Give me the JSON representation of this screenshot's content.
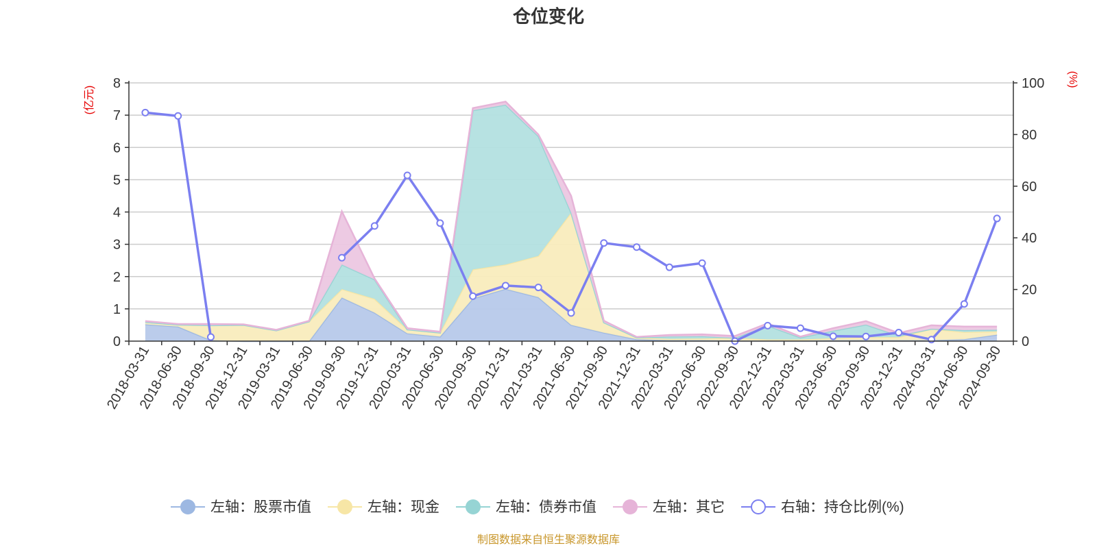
{
  "chart_data": {
    "type": "area",
    "title": "仓位变化",
    "ylabel_left": "(亿元)",
    "ylabel_right": "(%)",
    "ylim_left": [
      0,
      8
    ],
    "yticks_left": [
      "0",
      "1",
      "2",
      "3",
      "4",
      "5",
      "6",
      "7",
      "8"
    ],
    "ylim_right": [
      0,
      100
    ],
    "yticks_right": [
      "0",
      "20",
      "40",
      "60",
      "80",
      "100"
    ],
    "grid": true,
    "legend_position": "bottom",
    "categories": [
      "2018-03-31",
      "2018-06-30",
      "2018-09-30",
      "2018-12-31",
      "2019-03-31",
      "2019-06-30",
      "2019-09-30",
      "2019-12-31",
      "2020-03-31",
      "2020-06-30",
      "2020-09-30",
      "2020-12-31",
      "2021-03-31",
      "2021-06-30",
      "2021-09-30",
      "2021-12-31",
      "2022-03-31",
      "2022-06-30",
      "2022-09-30",
      "2022-12-31",
      "2023-03-31",
      "2023-06-30",
      "2023-09-30",
      "2023-12-31",
      "2024-03-31",
      "2024-06-30",
      "2024-09-30"
    ],
    "series": [
      {
        "name": "左轴：股票市值",
        "axis": "left",
        "color": "#9db8e2",
        "fill": "#b7c9ea",
        "values": [
          0.52,
          0.45,
          0.03,
          0,
          0,
          0,
          1.35,
          0.88,
          0.24,
          0.14,
          1.32,
          1.62,
          1.36,
          0.5,
          0.26,
          0.06,
          0.03,
          0.03,
          0.02,
          0.02,
          0.02,
          0.03,
          0.03,
          0.03,
          0.03,
          0.06,
          0.2
        ]
      },
      {
        "name": "左轴：现金",
        "axis": "left",
        "color": "#f7e6a6",
        "fill": "#f9ecbd",
        "values": [
          0.07,
          0.06,
          0.46,
          0.5,
          0.33,
          0.61,
          0.26,
          0.43,
          0.12,
          0.12,
          0.9,
          0.75,
          1.28,
          3.48,
          0.32,
          0.05,
          0.04,
          0.05,
          0.08,
          0.03,
          0.03,
          0.06,
          0.09,
          0.09,
          0.35,
          0.22,
          0.1
        ]
      },
      {
        "name": "左轴：债券市值",
        "axis": "left",
        "color": "#96d4d4",
        "fill": "#b3e0e0",
        "values": [
          0,
          0,
          0,
          0,
          0,
          0,
          0.76,
          0.6,
          0,
          0,
          4.93,
          4.95,
          3.71,
          0,
          0,
          0,
          0.07,
          0.07,
          0,
          0.43,
          0.06,
          0.23,
          0.39,
          0.05,
          0,
          0.06,
          0.05
        ]
      },
      {
        "name": "左轴：其它",
        "axis": "left",
        "color": "#e6b4d8",
        "fill": "#ecc7e2",
        "values": [
          0.03,
          0.02,
          0.04,
          0.02,
          0.02,
          0.02,
          1.65,
          0.03,
          0.04,
          0.03,
          0.07,
          0.1,
          0.05,
          0.52,
          0.05,
          0.02,
          0.05,
          0.06,
          0.06,
          0.07,
          0.03,
          0.08,
          0.11,
          0.08,
          0.11,
          0.11,
          0.1
        ]
      },
      {
        "name": "右轴：持仓比例(%)",
        "axis": "right",
        "color": "#7b7ff0",
        "values": [
          88.5,
          87.2,
          1.6,
          null,
          null,
          null,
          32.3,
          44.6,
          64.2,
          45.7,
          17.4,
          21.5,
          20.8,
          10.9,
          38.0,
          36.4,
          28.6,
          30.2,
          0.0,
          6.0,
          5.0,
          1.9,
          1.8,
          3.3,
          0.6,
          14.4,
          47.5
        ]
      }
    ]
  },
  "source_text": "制图数据来自恒生聚源数据库"
}
